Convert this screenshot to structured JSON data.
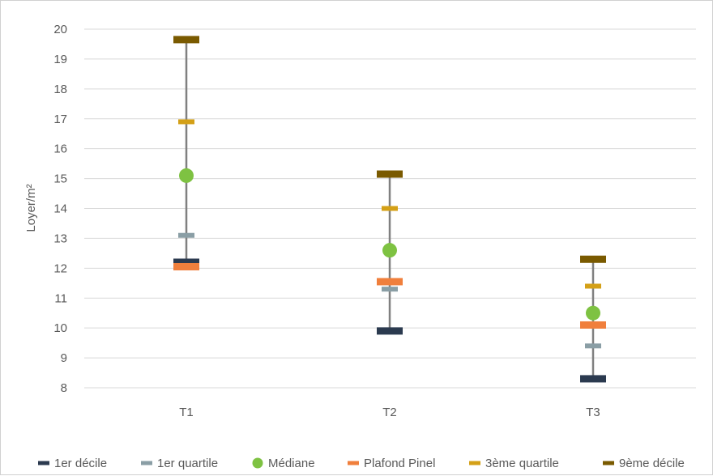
{
  "chart_data": {
    "type": "scatter",
    "categories": [
      "T1",
      "T2",
      "T3"
    ],
    "ylabel": "Loyer/m²",
    "xlabel": "",
    "ylim": [
      8,
      20
    ],
    "yticks": [
      "8",
      "9",
      "10",
      "11",
      "12",
      "13",
      "14",
      "15",
      "16",
      "17",
      "18",
      "19",
      "20"
    ],
    "grid": true,
    "legend_position": "bottom",
    "series": [
      {
        "name": "1er décile",
        "marker": "dash-large",
        "color": "#2b3a4f",
        "values": [
          12.2,
          9.9,
          8.3
        ]
      },
      {
        "name": "1er quartile",
        "marker": "dash-small",
        "color": "#8a9ea5",
        "values": [
          13.1,
          11.3,
          9.4
        ]
      },
      {
        "name": "Médiane",
        "marker": "circle",
        "color": "#7ec242",
        "values": [
          15.1,
          12.6,
          10.5
        ]
      },
      {
        "name": "Plafond Pinel",
        "marker": "dash-large",
        "color": "#f07f3c",
        "values": [
          12.05,
          11.55,
          10.1
        ]
      },
      {
        "name": "3ème quartile",
        "marker": "dash-small",
        "color": "#d4a017",
        "values": [
          16.9,
          14.0,
          11.4
        ]
      },
      {
        "name": "9ème décile",
        "marker": "dash-large",
        "color": "#7a5a00",
        "values": [
          19.65,
          15.15,
          12.3
        ]
      }
    ],
    "range_line_color": "#808080"
  }
}
